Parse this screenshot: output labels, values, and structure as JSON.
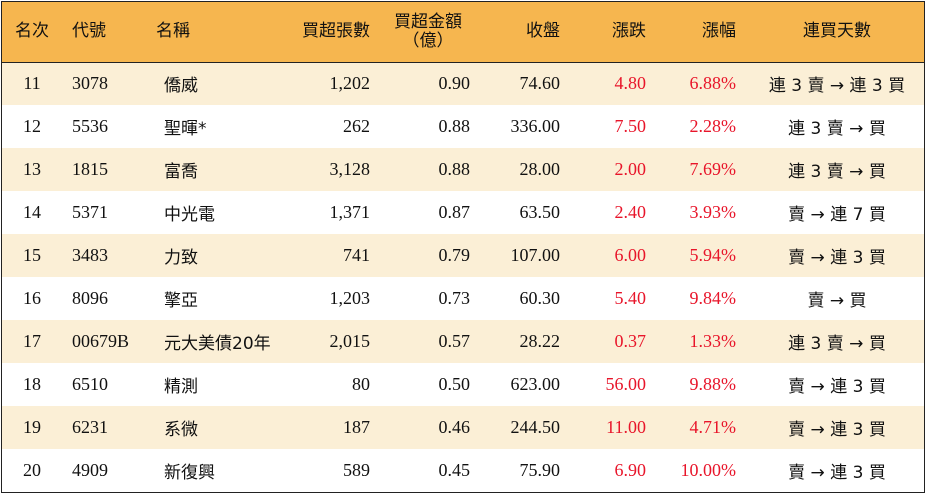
{
  "headers": {
    "rank": "名次",
    "code": "代號",
    "name": "名稱",
    "lots": "買超張數",
    "amount_line1": "買超金額",
    "amount_line2": "（億）",
    "close": "收盤",
    "change": "漲跌",
    "pct": "漲幅",
    "streak": "連買天數"
  },
  "rows": [
    {
      "rank": "11",
      "code": "3078",
      "name": "僑威",
      "lots": "1,202",
      "amount": "0.90",
      "close": "74.60",
      "change": "4.80",
      "pct": "6.88%",
      "streak": "連 3 賣 → 連 3 買"
    },
    {
      "rank": "12",
      "code": "5536",
      "name": "聖暉*",
      "lots": "262",
      "amount": "0.88",
      "close": "336.00",
      "change": "7.50",
      "pct": "2.28%",
      "streak": "連 3 賣 → 買"
    },
    {
      "rank": "13",
      "code": "1815",
      "name": "富喬",
      "lots": "3,128",
      "amount": "0.88",
      "close": "28.00",
      "change": "2.00",
      "pct": "7.69%",
      "streak": "連 3 賣 → 買"
    },
    {
      "rank": "14",
      "code": "5371",
      "name": "中光電",
      "lots": "1,371",
      "amount": "0.87",
      "close": "63.50",
      "change": "2.40",
      "pct": "3.93%",
      "streak": "賣 → 連 7 買"
    },
    {
      "rank": "15",
      "code": "3483",
      "name": "力致",
      "lots": "741",
      "amount": "0.79",
      "close": "107.00",
      "change": "6.00",
      "pct": "5.94%",
      "streak": "賣 → 連 3 買"
    },
    {
      "rank": "16",
      "code": "8096",
      "name": "擎亞",
      "lots": "1,203",
      "amount": "0.73",
      "close": "60.30",
      "change": "5.40",
      "pct": "9.84%",
      "streak": "賣 → 買"
    },
    {
      "rank": "17",
      "code": "00679B",
      "name": "元大美債20年",
      "lots": "2,015",
      "amount": "0.57",
      "close": "28.22",
      "change": "0.37",
      "pct": "1.33%",
      "streak": "連 3 賣 → 買"
    },
    {
      "rank": "18",
      "code": "6510",
      "name": "精測",
      "lots": "80",
      "amount": "0.50",
      "close": "623.00",
      "change": "56.00",
      "pct": "9.88%",
      "streak": "賣 → 連 3 買"
    },
    {
      "rank": "19",
      "code": "6231",
      "name": "系微",
      "lots": "187",
      "amount": "0.46",
      "close": "244.50",
      "change": "11.00",
      "pct": "4.71%",
      "streak": "賣 → 連 3 買"
    },
    {
      "rank": "20",
      "code": "4909",
      "name": "新復興",
      "lots": "589",
      "amount": "0.45",
      "close": "75.90",
      "change": "6.90",
      "pct": "10.00%",
      "streak": "賣 → 連 3 買"
    }
  ],
  "colors": {
    "header_bg": "#f6b64f",
    "stripe_bg": "#fbefd6",
    "up_red": "#e8152a"
  }
}
